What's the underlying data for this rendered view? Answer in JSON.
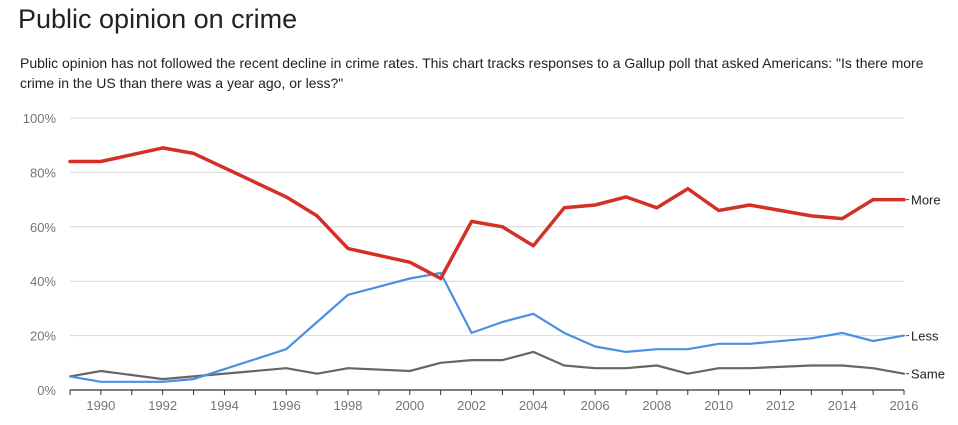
{
  "header": {
    "title": "Public opinion on crime",
    "subtitle": "Public opinion has not followed the recent decline in crime rates. This chart tracks responses to a Gallup poll that asked Americans: \"Is there more crime in the US than there was a year ago, or less?\""
  },
  "chart_data": {
    "type": "line",
    "title": "Public opinion on crime",
    "xlabel": "",
    "ylabel": "",
    "ylim": [
      0,
      100
    ],
    "xlim": [
      1989,
      2016
    ],
    "grid": true,
    "legend": "inline-right",
    "x_ticks": [
      1990,
      1992,
      1994,
      1996,
      1998,
      2000,
      2002,
      2004,
      2006,
      2008,
      2010,
      2012,
      2014,
      2016
    ],
    "y_ticks": [
      0,
      20,
      40,
      60,
      80,
      100
    ],
    "y_tick_labels": [
      "0%",
      "20%",
      "40%",
      "60%",
      "80%",
      "100%"
    ],
    "series": [
      {
        "name": "More",
        "color": "#d33027",
        "points": [
          [
            1989,
            84
          ],
          [
            1990,
            84
          ],
          [
            1992,
            89
          ],
          [
            1993,
            87
          ],
          [
            1996,
            71
          ],
          [
            1997,
            64
          ],
          [
            1998,
            52
          ],
          [
            2000,
            47
          ],
          [
            2001,
            41
          ],
          [
            2002,
            62
          ],
          [
            2003,
            60
          ],
          [
            2004,
            53
          ],
          [
            2005,
            67
          ],
          [
            2006,
            68
          ],
          [
            2007,
            71
          ],
          [
            2008,
            67
          ],
          [
            2009,
            74
          ],
          [
            2010,
            66
          ],
          [
            2011,
            68
          ],
          [
            2013,
            64
          ],
          [
            2014,
            63
          ],
          [
            2015,
            70
          ],
          [
            2016,
            70
          ]
        ]
      },
      {
        "name": "Less",
        "color": "#4a90e2",
        "points": [
          [
            1989,
            5
          ],
          [
            1990,
            3
          ],
          [
            1992,
            3
          ],
          [
            1993,
            4
          ],
          [
            1996,
            15
          ],
          [
            1997,
            25
          ],
          [
            1998,
            35
          ],
          [
            2000,
            41
          ],
          [
            2001,
            43
          ],
          [
            2002,
            21
          ],
          [
            2003,
            25
          ],
          [
            2004,
            28
          ],
          [
            2005,
            21
          ],
          [
            2006,
            16
          ],
          [
            2007,
            14
          ],
          [
            2008,
            15
          ],
          [
            2009,
            15
          ],
          [
            2010,
            17
          ],
          [
            2011,
            17
          ],
          [
            2013,
            19
          ],
          [
            2014,
            21
          ],
          [
            2015,
            18
          ],
          [
            2016,
            20
          ]
        ]
      },
      {
        "name": "Same",
        "color": "#666666",
        "points": [
          [
            1989,
            5
          ],
          [
            1990,
            7
          ],
          [
            1992,
            4
          ],
          [
            1993,
            5
          ],
          [
            1996,
            8
          ],
          [
            1997,
            6
          ],
          [
            1998,
            8
          ],
          [
            2000,
            7
          ],
          [
            2001,
            10
          ],
          [
            2002,
            11
          ],
          [
            2003,
            11
          ],
          [
            2004,
            14
          ],
          [
            2005,
            9
          ],
          [
            2006,
            8
          ],
          [
            2007,
            8
          ],
          [
            2008,
            9
          ],
          [
            2009,
            6
          ],
          [
            2010,
            8
          ],
          [
            2011,
            8
          ],
          [
            2013,
            9
          ],
          [
            2014,
            9
          ],
          [
            2015,
            8
          ],
          [
            2016,
            6
          ]
        ]
      }
    ]
  }
}
